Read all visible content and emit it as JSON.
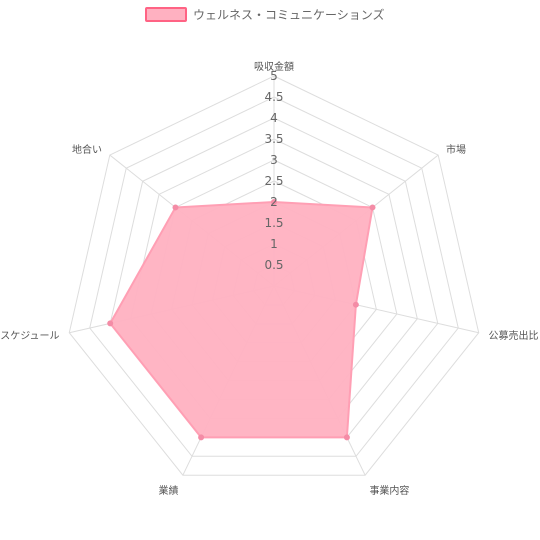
{
  "chart_data": {
    "type": "radar",
    "title": "",
    "categories": [
      "吸収金額",
      "市場",
      "公募売出比",
      "事業内容",
      "業績",
      "スケジュール",
      "地合い"
    ],
    "series": [
      {
        "name": "ウェルネス・コミュニケーションズ",
        "values": [
          2,
          3,
          2,
          4,
          4,
          4,
          3
        ]
      }
    ],
    "rlim": [
      0,
      5
    ],
    "ticks": [
      "0.5",
      "1",
      "1.5",
      "2",
      "2.5",
      "3",
      "3.5",
      "4",
      "4.5",
      "5"
    ],
    "tick_values": [
      0.5,
      1,
      1.5,
      2,
      2.5,
      3,
      3.5,
      4,
      4.5,
      5
    ],
    "grid": true,
    "legend_position": "top",
    "colors": {
      "fill": "#ffb1c1",
      "fill_opacity": 0.95,
      "stroke": "#ff9fb4",
      "point": "#f48ca6",
      "grid": "#dddddd",
      "legend_fill": "#ffb1c1",
      "legend_stroke": "#ff6384"
    }
  }
}
